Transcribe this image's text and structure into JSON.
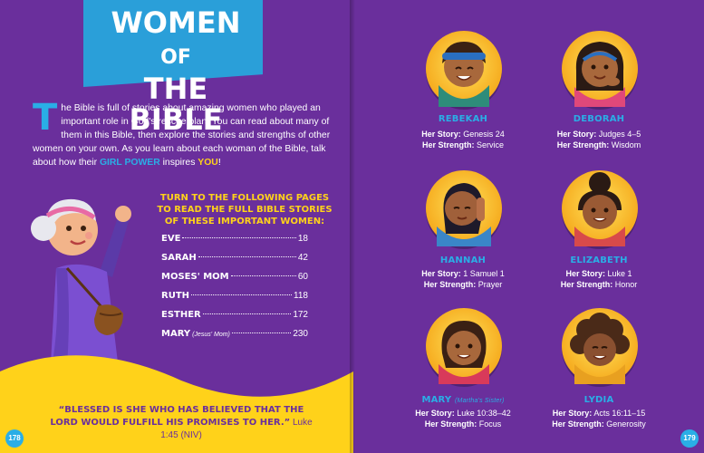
{
  "title": {
    "line1_main": "WOMEN",
    "line1_small": "OF",
    "line2": "THE BIBLE"
  },
  "intro": {
    "dropcap": "T",
    "text_before": "he Bible is full of stories about amazing women who played an important role in God's rescue plan. You can read about many of them in this Bible, then explore the stories and strengths of other women on your own. As you learn about each woman of the Bible, talk about how their ",
    "girl_power": "GIRL POWER",
    "text_mid": " inspires ",
    "you": "YOU",
    "text_end": "!"
  },
  "toc": {
    "heading": [
      "TURN TO THE FOLLOWING PAGES",
      "TO READ THE FULL BIBLE STORIES",
      "OF THESE IMPORTANT WOMEN:"
    ],
    "entries": [
      {
        "name": "EVE",
        "sub": "",
        "page": "18"
      },
      {
        "name": "SARAH",
        "sub": "",
        "page": "42"
      },
      {
        "name": "MOSES' MOM",
        "sub": "",
        "page": "60"
      },
      {
        "name": "RUTH",
        "sub": "",
        "page": "118"
      },
      {
        "name": "ESTHER",
        "sub": "",
        "page": "172"
      },
      {
        "name": "MARY",
        "sub": "(Jesus' Mom)",
        "page": "230"
      }
    ]
  },
  "quote": {
    "text": "“BLESSED IS SHE WHO HAS BELIEVED THAT THE LORD WOULD FULFILL HIS PROMISES TO HER.”",
    "reference": "Luke 1:45 (NIV)"
  },
  "page_numbers": {
    "left": "178",
    "right": "179"
  },
  "labels": {
    "story": "Her Story:",
    "strength": "Her Strength:"
  },
  "women": [
    {
      "name": "REBEKAH",
      "sub": "",
      "story": "Genesis 24",
      "strength": "Service"
    },
    {
      "name": "DEBORAH",
      "sub": "",
      "story": "Judges 4–5",
      "strength": "Wisdom"
    },
    {
      "name": "HANNAH",
      "sub": "",
      "story": "1 Samuel 1",
      "strength": "Prayer"
    },
    {
      "name": "ELIZABETH",
      "sub": "",
      "story": "Luke 1",
      "strength": "Honor"
    },
    {
      "name": "MARY",
      "sub": "(Martha's Sister)",
      "story": "Luke 10:38–42",
      "strength": "Focus"
    },
    {
      "name": "LYDIA",
      "sub": "",
      "story": "Acts 16:11–15",
      "strength": "Generosity"
    }
  ],
  "colors": {
    "background": "#6a2f9c",
    "accent_blue": "#2aaee6",
    "accent_yellow": "#ffd21a",
    "title_banner": "#2a9fd9"
  }
}
